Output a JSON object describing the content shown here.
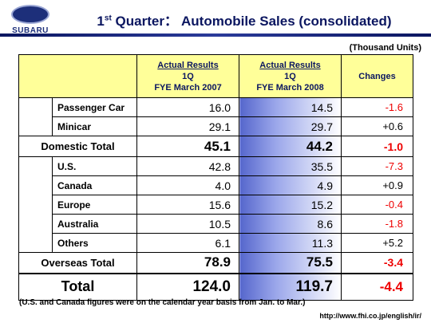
{
  "brand": {
    "name": "SUBARU",
    "color": "#1d2f7a"
  },
  "title": {
    "prefix": "1",
    "sup": "st",
    "rest": " Quarter： Automobile Sales (consolidated)"
  },
  "units": "(Thousand Units)",
  "header": {
    "col1": {
      "line1": "Actual Results",
      "line2": "1Q",
      "line3": "FYE March 2007"
    },
    "col2": {
      "line1": "Actual Results",
      "line2": "1Q",
      "line3": "FYE March 2008"
    },
    "col3": "Changes"
  },
  "domestic": [
    {
      "label": "Passenger Car",
      "fy2007": "16.0",
      "fy2008": "14.5",
      "change": "-1.6"
    },
    {
      "label": "Minicar",
      "fy2007": "29.1",
      "fy2008": "29.7",
      "change": "+0.6"
    }
  ],
  "domestic_total": {
    "label": "Domestic Total",
    "fy2007": "45.1",
    "fy2008": "44.2",
    "change": "-1.0"
  },
  "overseas": [
    {
      "label": "U.S.",
      "fy2007": "42.8",
      "fy2008": "35.5",
      "change": "-7.3"
    },
    {
      "label": "Canada",
      "fy2007": "4.0",
      "fy2008": "4.9",
      "change": "+0.9"
    },
    {
      "label": "Europe",
      "fy2007": "15.6",
      "fy2008": "15.2",
      "change": "-0.4"
    },
    {
      "label": "Australia",
      "fy2007": "10.5",
      "fy2008": "8.6",
      "change": "-1.8"
    },
    {
      "label": "Others",
      "fy2007": "6.1",
      "fy2008": "11.3",
      "change": "+5.2"
    }
  ],
  "overseas_total": {
    "label": "Overseas Total",
    "fy2007": "78.9",
    "fy2008": "75.5",
    "change": "-3.4"
  },
  "grand_total": {
    "label": "Total",
    "fy2007": "124.0",
    "fy2008": "119.7",
    "change": "-4.4"
  },
  "note": "(U.S. and Canada figures were on the calendar year basis from Jan. to Mar.)",
  "url": "http://www.fhi.co.jp/english/ir/",
  "colors": {
    "negative": "#ee0000",
    "header_bg": "#ffff99",
    "title": "#0b1660"
  }
}
